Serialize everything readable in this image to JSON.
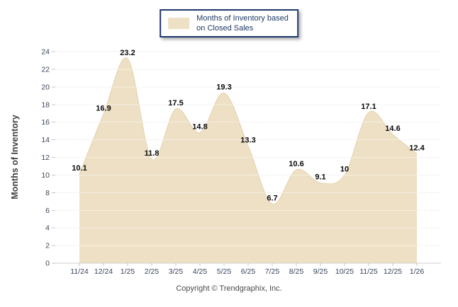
{
  "footer": {
    "copyright": "Copyright © Trendgraphix, Inc."
  },
  "chart_data": {
    "type": "area",
    "title": "",
    "xlabel": "",
    "ylabel": "Months of Inventory",
    "categories": [
      "11/24",
      "12/24",
      "1/25",
      "2/25",
      "3/25",
      "4/25",
      "5/25",
      "6/25",
      "7/25",
      "8/25",
      "9/25",
      "10/25",
      "11/25",
      "12/25",
      "1/26"
    ],
    "values": [
      10.1,
      16.9,
      23.2,
      11.8,
      17.5,
      14.8,
      19.3,
      13.3,
      6.7,
      10.6,
      9.1,
      10,
      17.1,
      14.6,
      12.4
    ],
    "ylim": [
      0,
      24
    ],
    "yticks": [
      0,
      2,
      4,
      6,
      8,
      10,
      12,
      14,
      16,
      18,
      20,
      22,
      24
    ],
    "grid": true,
    "legend": {
      "position": "top-center",
      "lines": [
        "Months of Inventory based",
        "on Closed Sales"
      ]
    },
    "colors": {
      "fill": "#ede0c4",
      "stroke": "#e2d1ab",
      "grid": "#e7e7e7",
      "grid_over_fill": "rgba(255,255,255,0.5)",
      "axis_line": "#cfcfcf",
      "tick_mark": "#c4c4c4",
      "tick_text": "#39465a",
      "value_text": "#0a0a0a",
      "title_text": "#3f3f3f",
      "legend_border": "#20386b",
      "legend_text": "#1f3864",
      "copyright_text": "#4a4a4a"
    }
  }
}
